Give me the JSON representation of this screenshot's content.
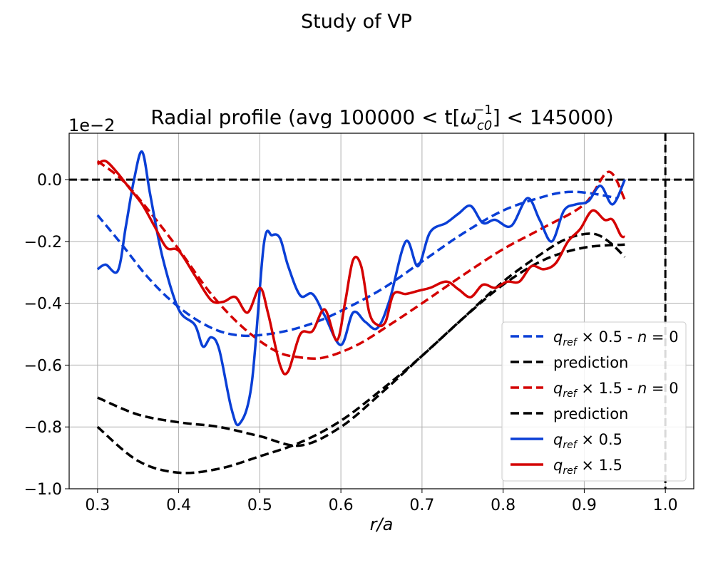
{
  "figure": {
    "suptitle": "Study of VP"
  },
  "chart_data": {
    "type": "line",
    "title_prefix": "Radial profile (avg 100000 < t[",
    "title_symbol": "ω",
    "title_sub": "c0",
    "title_sup": "−1",
    "title_suffix": "] < 145000)",
    "xlabel": "r/a",
    "ylabel": "",
    "offset_label": "1e−2",
    "xlim": [
      0.265,
      1.035
    ],
    "ylim": [
      -1.0,
      0.15
    ],
    "xticks": [
      0.3,
      0.4,
      0.5,
      0.6,
      0.7,
      0.8,
      0.9,
      1.0
    ],
    "xtick_labels": [
      "0.3",
      "0.4",
      "0.5",
      "0.6",
      "0.7",
      "0.8",
      "0.9",
      "1.0"
    ],
    "yticks": [
      -1.0,
      -0.8,
      -0.6,
      -0.4,
      -0.2,
      0.0
    ],
    "ytick_labels": [
      "−1.0",
      "−0.8",
      "−0.6",
      "−0.4",
      "−0.2",
      "0.0"
    ],
    "grid": true,
    "legend_position": "lower-right",
    "reference_lines": {
      "y_zero": 0.0,
      "x_edge": 1.0,
      "color": "#000000"
    },
    "series": [
      {
        "legend": "q_ref × 0.5 - n = 0",
        "legend_q": "q",
        "legend_q_sub": "ref",
        "legend_rest": " × 0.5 - ",
        "legend_n": "n",
        "legend_tail": " = 0",
        "color": "#0a3fd6",
        "style": "dashed",
        "x": [
          0.3,
          0.33,
          0.36,
          0.39,
          0.42,
          0.45,
          0.48,
          0.51,
          0.54,
          0.57,
          0.6,
          0.65,
          0.7,
          0.75,
          0.8,
          0.85,
          0.88,
          0.91,
          0.94
        ],
        "y": [
          -0.115,
          -0.21,
          -0.31,
          -0.39,
          -0.45,
          -0.49,
          -0.505,
          -0.5,
          -0.485,
          -0.46,
          -0.425,
          -0.355,
          -0.265,
          -0.175,
          -0.1,
          -0.055,
          -0.04,
          -0.045,
          -0.06
        ]
      },
      {
        "legend": "prediction",
        "color": "#000000",
        "style": "dashed",
        "x": [
          0.3,
          0.35,
          0.4,
          0.45,
          0.5,
          0.55,
          0.6,
          0.65,
          0.7,
          0.75,
          0.8,
          0.85,
          0.9,
          0.95
        ],
        "y": [
          -0.8,
          -0.91,
          -0.948,
          -0.935,
          -0.895,
          -0.85,
          -0.78,
          -0.68,
          -0.57,
          -0.45,
          -0.34,
          -0.26,
          -0.22,
          -0.21
        ]
      },
      {
        "legend": "q_ref × 1.5 - n = 0",
        "legend_q": "q",
        "legend_q_sub": "ref",
        "legend_rest": " × 1.5 - ",
        "legend_n": "n",
        "legend_tail": " = 0",
        "color": "#d40000",
        "style": "dashed",
        "x": [
          0.3,
          0.33,
          0.36,
          0.4,
          0.44,
          0.48,
          0.52,
          0.55,
          0.58,
          0.62,
          0.66,
          0.7,
          0.75,
          0.8,
          0.85,
          0.9,
          0.93,
          0.95
        ],
        "y": [
          0.06,
          0.0,
          -0.09,
          -0.225,
          -0.37,
          -0.48,
          -0.555,
          -0.575,
          -0.575,
          -0.535,
          -0.47,
          -0.4,
          -0.31,
          -0.225,
          -0.155,
          -0.08,
          0.025,
          -0.065
        ]
      },
      {
        "legend": "prediction",
        "color": "#000000",
        "style": "dashed",
        "x": [
          0.3,
          0.35,
          0.4,
          0.45,
          0.5,
          0.55,
          0.6,
          0.65,
          0.7,
          0.75,
          0.8,
          0.85,
          0.88,
          0.91,
          0.93,
          0.95
        ],
        "y": [
          -0.705,
          -0.76,
          -0.785,
          -0.8,
          -0.83,
          -0.86,
          -0.8,
          -0.69,
          -0.57,
          -0.45,
          -0.33,
          -0.235,
          -0.19,
          -0.175,
          -0.2,
          -0.25
        ]
      },
      {
        "legend": "q_ref × 0.5",
        "legend_q": "q",
        "legend_q_sub": "ref",
        "legend_rest": " × 0.5",
        "color": "#0a3fd6",
        "style": "solid",
        "x": [
          0.3,
          0.31,
          0.325,
          0.335,
          0.345,
          0.355,
          0.365,
          0.38,
          0.4,
          0.42,
          0.43,
          0.44,
          0.45,
          0.465,
          0.475,
          0.49,
          0.505,
          0.515,
          0.525,
          0.535,
          0.55,
          0.565,
          0.58,
          0.6,
          0.615,
          0.63,
          0.645,
          0.66,
          0.68,
          0.695,
          0.71,
          0.73,
          0.745,
          0.76,
          0.775,
          0.79,
          0.81,
          0.83,
          0.845,
          0.86,
          0.875,
          0.89,
          0.905,
          0.92,
          0.935,
          0.95
        ],
        "y": [
          -0.29,
          -0.275,
          -0.295,
          -0.15,
          0.0,
          0.09,
          -0.05,
          -0.25,
          -0.42,
          -0.47,
          -0.54,
          -0.51,
          -0.55,
          -0.74,
          -0.79,
          -0.66,
          -0.21,
          -0.18,
          -0.19,
          -0.28,
          -0.375,
          -0.37,
          -0.44,
          -0.535,
          -0.43,
          -0.46,
          -0.48,
          -0.39,
          -0.2,
          -0.28,
          -0.17,
          -0.14,
          -0.11,
          -0.085,
          -0.14,
          -0.13,
          -0.15,
          -0.06,
          -0.13,
          -0.2,
          -0.1,
          -0.08,
          -0.07,
          -0.02,
          -0.08,
          0.0
        ]
      },
      {
        "legend": "q_ref × 1.5",
        "legend_q": "q",
        "legend_q_sub": "ref",
        "legend_rest": " × 1.5",
        "color": "#d40000",
        "style": "solid",
        "x": [
          0.3,
          0.31,
          0.325,
          0.34,
          0.355,
          0.37,
          0.385,
          0.4,
          0.42,
          0.44,
          0.455,
          0.47,
          0.485,
          0.5,
          0.51,
          0.525,
          0.535,
          0.55,
          0.565,
          0.58,
          0.595,
          0.605,
          0.615,
          0.625,
          0.635,
          0.645,
          0.655,
          0.665,
          0.68,
          0.695,
          0.71,
          0.73,
          0.745,
          0.76,
          0.775,
          0.79,
          0.805,
          0.82,
          0.835,
          0.85,
          0.865,
          0.88,
          0.895,
          0.91,
          0.925,
          0.935,
          0.945,
          0.95
        ],
        "y": [
          0.05,
          0.06,
          0.02,
          -0.03,
          -0.08,
          -0.15,
          -0.22,
          -0.23,
          -0.31,
          -0.39,
          -0.395,
          -0.38,
          -0.43,
          -0.35,
          -0.43,
          -0.6,
          -0.62,
          -0.5,
          -0.49,
          -0.42,
          -0.52,
          -0.4,
          -0.26,
          -0.28,
          -0.43,
          -0.47,
          -0.46,
          -0.37,
          -0.37,
          -0.36,
          -0.35,
          -0.33,
          -0.355,
          -0.38,
          -0.34,
          -0.35,
          -0.33,
          -0.33,
          -0.28,
          -0.29,
          -0.27,
          -0.2,
          -0.16,
          -0.1,
          -0.13,
          -0.13,
          -0.18,
          -0.185
        ]
      }
    ]
  }
}
